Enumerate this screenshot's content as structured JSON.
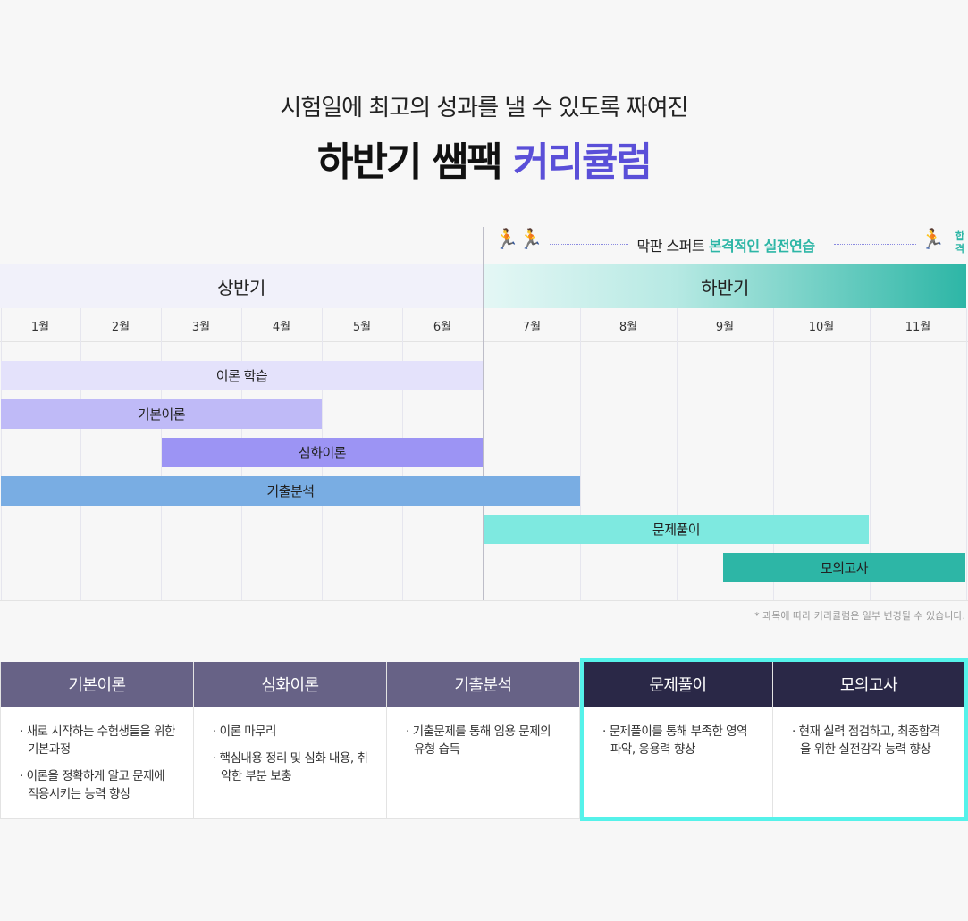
{
  "header": {
    "subtitle": "시험일에 최고의 성과를 낼 수 있도록 짜여진",
    "title_main": "하반기 쌤팩",
    "title_accent": "커리큘럼"
  },
  "sprint": {
    "text_prefix": "막판 스퍼트",
    "text_highlight": "본격적인 실전연습",
    "goal_label_1": "합",
    "goal_label_2": "격",
    "runner_left_icon": "runners-icon",
    "runner_right_icon": "finish-runner-icon"
  },
  "halves": {
    "first": "상반기",
    "second": "하반기"
  },
  "months": [
    "1월",
    "2월",
    "3월",
    "4월",
    "5월",
    "6월",
    "7월",
    "8월",
    "9월",
    "10월",
    "11월"
  ],
  "bars": [
    {
      "label": "이론 학습",
      "color": "#e4e2fb"
    },
    {
      "label": "기본이론",
      "color": "#bfbaf7"
    },
    {
      "label": "심화이론",
      "color": "#9c94f4"
    },
    {
      "label": "기출분석",
      "color": "#79ade3"
    },
    {
      "label": "문제풀이",
      "color": "#7ee9e0"
    },
    {
      "label": "모의고사",
      "color": "#2db6a6"
    }
  ],
  "note": "* 과목에 따라 커리큘럼은 일부 변경될 수 있습니다.",
  "cards": [
    {
      "title": "기본이론",
      "items": [
        "· 새로 시작하는 수험생들을 위한 기본과정",
        "· 이론을 정확하게 알고 문제에 적용시키는 능력 향상"
      ]
    },
    {
      "title": "심화이론",
      "items": [
        "· 이론 마무리",
        "· 핵심내용 정리 및 심화 내용, 취약한 부분 보충"
      ]
    },
    {
      "title": "기출분석",
      "items": [
        "· 기출문제를 통해 임용 문제의 유형 습득"
      ]
    },
    {
      "title": "문제풀이",
      "items": [
        "· 문제풀이를 통해 부족한 영역 파악, 응용력 향상"
      ]
    },
    {
      "title": "모의고사",
      "items": [
        "· 현재 실력 점검하고, 최종합격을 위한 실전감각 능력 향상"
      ]
    }
  ],
  "colors": {
    "accent": "#5a4fd8",
    "teal": "#2db6a6",
    "highlight_border": "#55f2ea",
    "card_head_light": "#676286",
    "card_head_dark": "#2a2847"
  }
}
